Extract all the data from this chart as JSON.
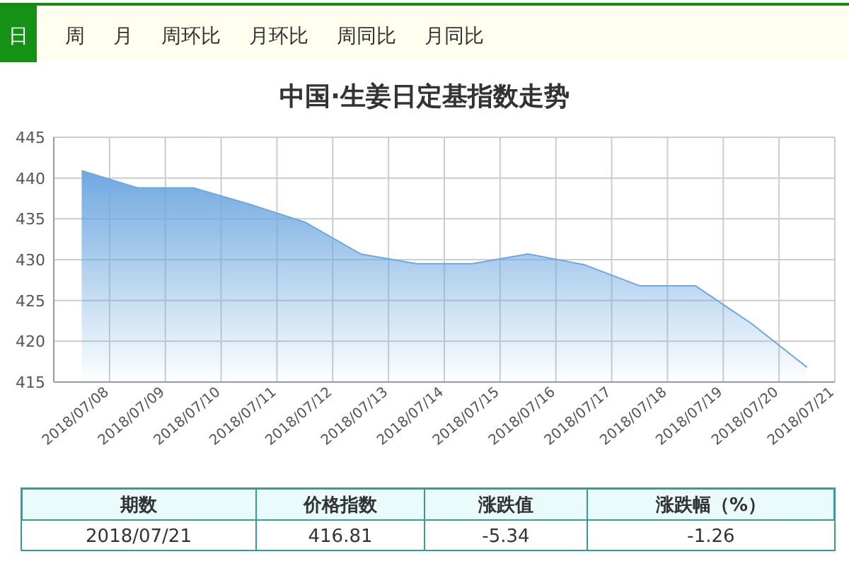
{
  "chart_data": {
    "type": "area",
    "title": "中国·生姜日定基指数走势",
    "categories": [
      "2018/07/08",
      "2018/07/09",
      "2018/07/10",
      "2018/07/11",
      "2018/07/12",
      "2018/07/13",
      "2018/07/14",
      "2018/07/15",
      "2018/07/16",
      "2018/07/17",
      "2018/07/18",
      "2018/07/19",
      "2018/07/20",
      "2018/07/21"
    ],
    "values": [
      440.9,
      438.8,
      438.8,
      436.8,
      434.6,
      430.7,
      429.5,
      429.5,
      430.7,
      429.4,
      426.8,
      426.8,
      422.2,
      416.81
    ],
    "color": "#6fa8e0",
    "ylim": [
      415,
      445
    ],
    "yticks": [
      415,
      420,
      425,
      430,
      435,
      440,
      445
    ],
    "grid": true,
    "annotations": [
      "日",
      "周",
      "月",
      "周环比",
      "月环比",
      "周同比",
      "月同比",
      "期数",
      "价格指数",
      "涨跌值",
      "涨跌幅（%）",
      "2018/07/21",
      "416.81",
      "-5.34",
      "-1.26"
    ]
  }
}
